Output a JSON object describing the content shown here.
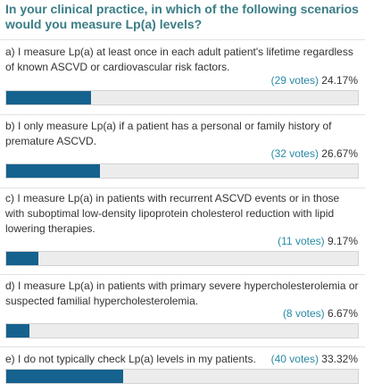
{
  "poll": {
    "question": "In your clinical practice, in which of the following scenarios would you measure Lp(a) levels?",
    "colors": {
      "bar_fill": "#15628e",
      "bar_track": "#ececec",
      "votes_link": "#2a8aa6",
      "question": "#3a7d86"
    },
    "options": [
      {
        "text": "a) I measure Lp(a) at least once in each adult patient's lifetime regardless of known ASCVD or cardiovascular risk factors.",
        "votes": "(29 votes)",
        "percent": "24.17%",
        "fraction": 0.2417
      },
      {
        "text": "b) I only measure Lp(a) if a patient has a personal or family history of premature ASCVD.",
        "votes": "(32 votes)",
        "percent": "26.67%",
        "fraction": 0.2667
      },
      {
        "text": "c) I measure Lp(a) in patients with recurrent ASCVD events or in those with suboptimal low-density lipoprotein cholesterol reduction with lipid lowering therapies.",
        "votes": "(11 votes)",
        "percent": "9.17%",
        "fraction": 0.0917
      },
      {
        "text": "d) I measure Lp(a) in patients with primary severe hypercholesterolemia or suspected familial hypercholesterolemia.",
        "votes": "(8 votes)",
        "percent": "6.67%",
        "fraction": 0.0667
      },
      {
        "text": "e) I do not typically check Lp(a) levels in my patients.",
        "votes": "(40 votes)",
        "percent": "33.32%",
        "fraction": 0.3332
      }
    ]
  }
}
